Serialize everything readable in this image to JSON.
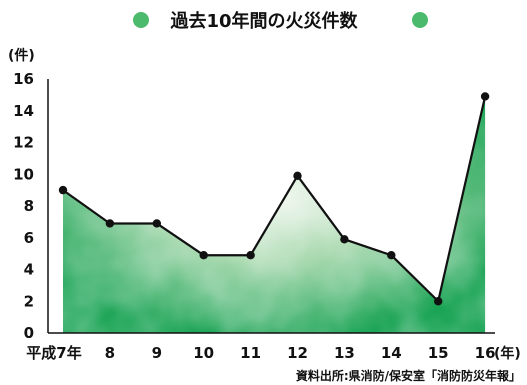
{
  "chart_data": {
    "type": "area",
    "title": "過去10年間の火災件数",
    "y_unit": "(件)",
    "x_unit": "(年)",
    "categories": [
      "平成7年",
      "8",
      "9",
      "10",
      "11",
      "12",
      "13",
      "14",
      "15",
      "16"
    ],
    "series": [
      {
        "values": [
          9,
          6.9,
          6.9,
          4.9,
          4.9,
          9.9,
          5.9,
          4.9,
          2,
          14.9
        ]
      }
    ],
    "ylim": [
      0,
      16
    ],
    "yticks": [
      0,
      2,
      4,
      6,
      8,
      10,
      12,
      14,
      16
    ],
    "grid": false,
    "source": "資料出所:県消防/保安室「消防防災年報」",
    "colors": {
      "fill_dark": "#0c9e4a",
      "fill_light": "#e7f3e8",
      "line": "#111111",
      "marker": "#111111",
      "title_bullet": "#4cba6c"
    }
  }
}
